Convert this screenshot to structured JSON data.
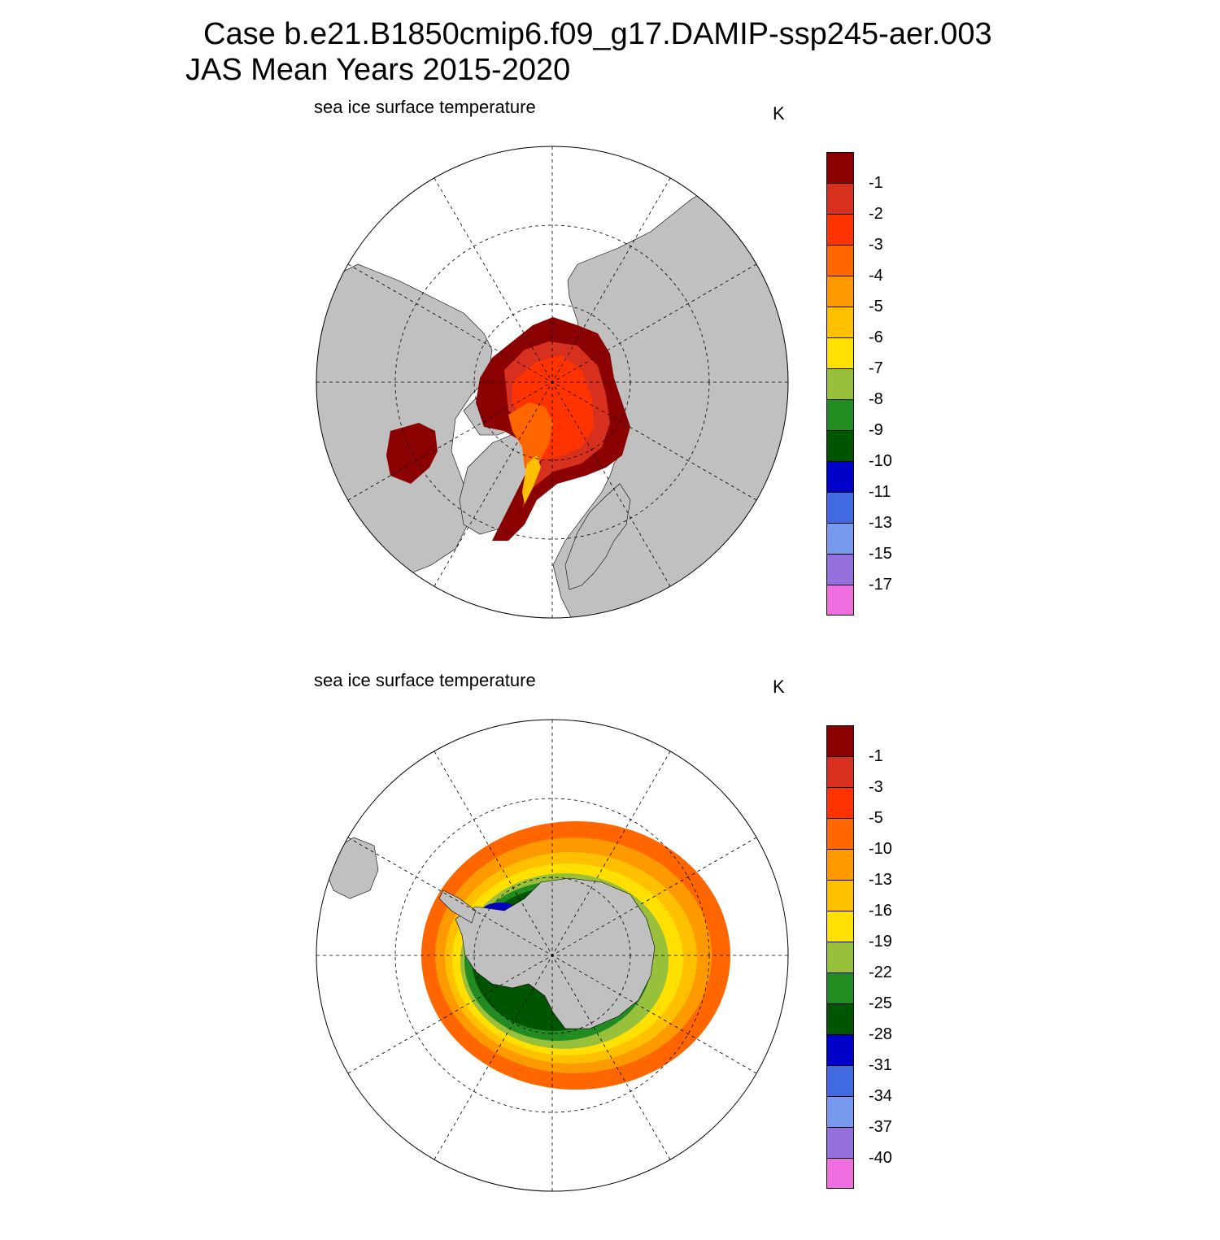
{
  "header": {
    "title_line1": "Case b.e21.B1850cmip6.f09_g17.DAMIP-ssp245-aer.003",
    "title_line2": "JAS Mean   Years 2015-2020"
  },
  "colors": {
    "land": "#c0c0c0",
    "coast": "#000000",
    "grid": "#000000"
  },
  "panels": [
    {
      "hemisphere": "north",
      "variable_label": "sea ice surface temperature",
      "units": "K",
      "colorbar": {
        "colors": [
          "#8b0000",
          "#d7301f",
          "#ff3300",
          "#ff6600",
          "#ff9900",
          "#ffc000",
          "#ffe000",
          "#99c03a",
          "#228b22",
          "#005500",
          "#0000c8",
          "#4169e1",
          "#7799ee",
          "#9370db",
          "#ee6ee0"
        ],
        "labels": [
          "-1",
          "-2",
          "-3",
          "-4",
          "-5",
          "-6",
          "-7",
          "-8",
          "-9",
          "-10",
          "-11",
          "-13",
          "-15",
          "-17"
        ]
      }
    },
    {
      "hemisphere": "south",
      "variable_label": "sea ice surface temperature",
      "units": "K",
      "colorbar": {
        "colors": [
          "#8b0000",
          "#d7301f",
          "#ff3300",
          "#ff6600",
          "#ff9900",
          "#ffc000",
          "#ffe000",
          "#99c03a",
          "#228b22",
          "#005500",
          "#0000c8",
          "#4169e1",
          "#7799ee",
          "#9370db",
          "#ee6ee0"
        ],
        "labels": [
          "-1",
          "-3",
          "-5",
          "-10",
          "-13",
          "-16",
          "-19",
          "-22",
          "-25",
          "-28",
          "-31",
          "-34",
          "-37",
          "-40"
        ]
      }
    }
  ]
}
